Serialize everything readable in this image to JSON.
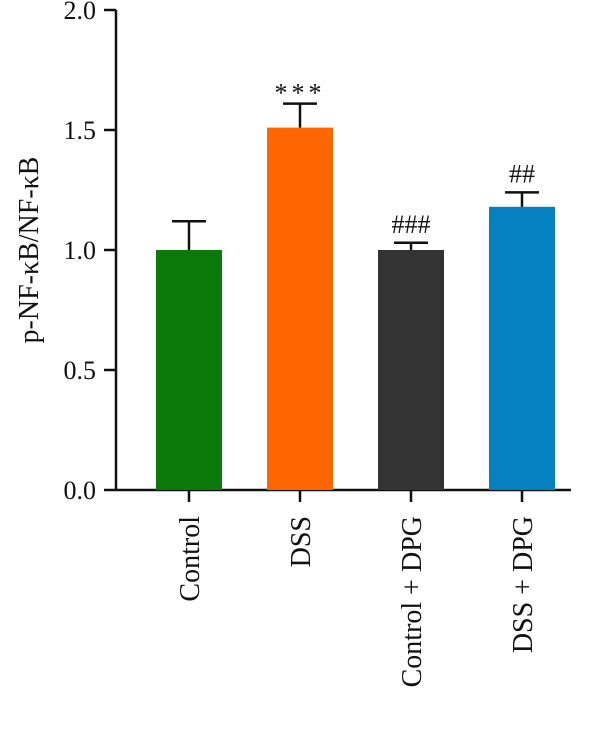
{
  "chart_data": {
    "type": "bar",
    "title": "",
    "xlabel": "",
    "ylabel": "p-NF-κB/NF-κB",
    "ylim": [
      0,
      2.0
    ],
    "yticks": [
      "0.0",
      "0.5",
      "1.0",
      "1.5",
      "2.0"
    ],
    "grid": false,
    "categories": [
      "Control",
      "DSS",
      "Control + DPG",
      "DSS + DPG"
    ],
    "values": [
      1.0,
      1.51,
      1.0,
      1.18
    ],
    "errors": [
      0.12,
      0.1,
      0.03,
      0.06
    ],
    "annotations": [
      "",
      "***",
      "###",
      "##"
    ],
    "colors": [
      "#0a7a0a",
      "#ff6600",
      "#333333",
      "#0580c0"
    ]
  }
}
